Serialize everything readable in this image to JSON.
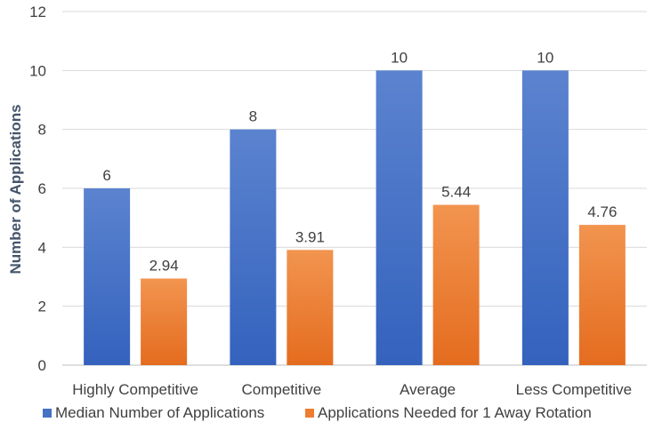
{
  "chart_data": {
    "type": "bar",
    "categories": [
      "Highly Competitive",
      "Competitive",
      "Average",
      "Less Competitive"
    ],
    "series": [
      {
        "name": "Median Number of Applications",
        "values": [
          6,
          8,
          10,
          10
        ],
        "labels": [
          "6",
          "8",
          "10",
          "10"
        ],
        "color": "#4472c4"
      },
      {
        "name": "Applications Needed for 1 Away Rotation",
        "values": [
          2.94,
          3.91,
          5.44,
          4.76
        ],
        "labels": [
          "2.94",
          "3.91",
          "5.44",
          "4.76"
        ],
        "color": "#ed7d31"
      }
    ],
    "title": "",
    "xlabel": "",
    "ylabel": "Number of Applications",
    "ylim": [
      0,
      12
    ],
    "yticks": [
      "0",
      "2",
      "4",
      "6",
      "8",
      "10",
      "12"
    ],
    "grid": true,
    "legend_position": "bottom"
  }
}
